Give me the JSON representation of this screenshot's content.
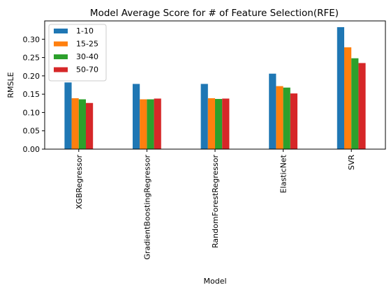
{
  "chart_data": {
    "type": "bar",
    "title": "Model Average Score for # of Feature Selection(RFE)",
    "xlabel": "Model",
    "ylabel": "RMSLE",
    "categories": [
      "XGBRegressor",
      "GradientBoostingRegressor",
      "RandomForestRegressor",
      "ElasticNet",
      "SVR"
    ],
    "series": [
      {
        "name": "1-10",
        "color": "#1f77b4",
        "values": [
          0.182,
          0.178,
          0.178,
          0.206,
          0.333
        ]
      },
      {
        "name": "15-25",
        "color": "#ff7f0e",
        "values": [
          0.139,
          0.136,
          0.139,
          0.172,
          0.278
        ]
      },
      {
        "name": "30-40",
        "color": "#2ca02c",
        "values": [
          0.136,
          0.136,
          0.137,
          0.168,
          0.248
        ]
      },
      {
        "name": "50-70",
        "color": "#d62728",
        "values": [
          0.126,
          0.138,
          0.138,
          0.152,
          0.235
        ]
      }
    ],
    "ylim": [
      0,
      0.35
    ],
    "yticks": [
      "0.00",
      "0.05",
      "0.10",
      "0.15",
      "0.20",
      "0.25",
      "0.30"
    ],
    "grid": false,
    "legend_position": "top-left"
  }
}
